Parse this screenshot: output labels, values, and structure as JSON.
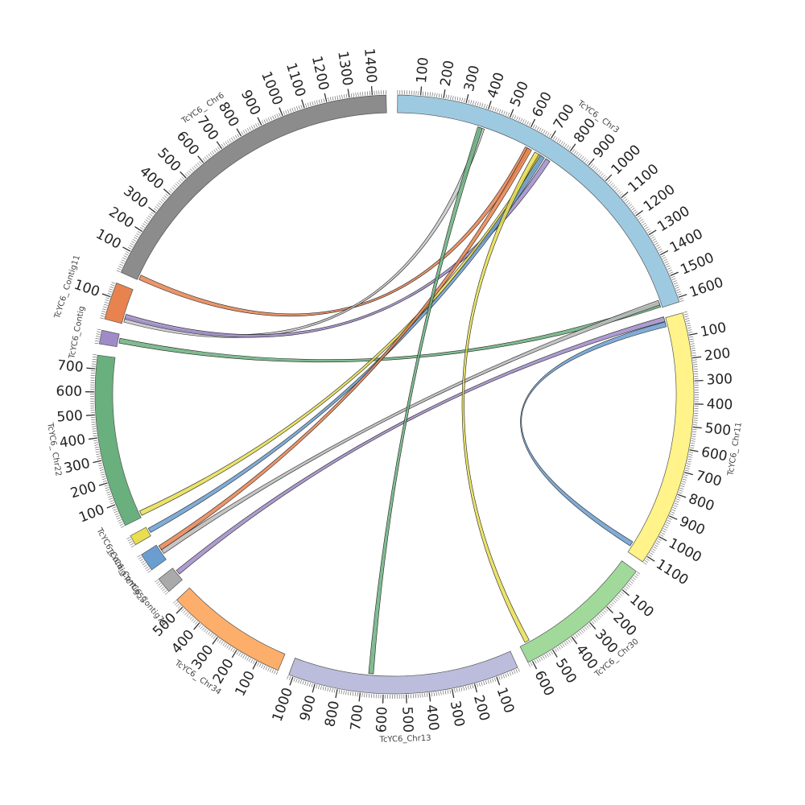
{
  "chart_data": {
    "type": "chord",
    "chromosomes": [
      {
        "name": "TcYC6_Chr3",
        "label": "TcYC6_ Chr3",
        "length": 1620,
        "color": "#9ecae1",
        "tick_labels": [
          "100",
          "200",
          "300",
          "400",
          "500",
          "600",
          "700",
          "800",
          "900",
          "1000",
          "1100",
          "1200",
          "1300",
          "1400",
          "1500",
          "1600"
        ]
      },
      {
        "name": "TcYC6_Chr11",
        "label": "TcYC6_ Chr11",
        "length": 1130,
        "color": "#fff38a",
        "tick_labels": [
          "100",
          "200",
          "300",
          "400",
          "500",
          "600",
          "700",
          "800",
          "900",
          "1000",
          "1100"
        ]
      },
      {
        "name": "TcYC6_Chr30",
        "label": "TcYC6_ Chr30",
        "length": 620,
        "color": "#a1d99b",
        "tick_labels": [
          "100",
          "200",
          "300",
          "400",
          "500",
          "600"
        ]
      },
      {
        "name": "TcYC6_Chr13",
        "label": "TcYC6_Chr13",
        "length": 1020,
        "color": "#bcbddc",
        "tick_labels": [
          "100",
          "200",
          "300",
          "400",
          "500",
          "600",
          "700",
          "800",
          "900",
          "1000"
        ]
      },
      {
        "name": "TcYC6_Chr34",
        "label": "TcYC6_ Chr34",
        "length": 540,
        "color": "#fdae6b",
        "tick_labels": [
          "100",
          "200",
          "300",
          "400",
          "500"
        ]
      },
      {
        "name": "TcYC6_Contig74",
        "label": "TcYC6_Contig74",
        "length": 70,
        "color": "#aaaaaa",
        "tick_labels": []
      },
      {
        "name": "TcYC6_Contig_b",
        "label": "TcYC6_Contig53",
        "length": 80,
        "color": "#6a9ed0",
        "tick_labels": []
      },
      {
        "name": "TcYC6_Contig_c",
        "label": "TcYC6_Contig",
        "length": 45,
        "color": "#e8de50",
        "tick_labels": []
      },
      {
        "name": "TcYC6_Chr22",
        "label": "TcYC6_ Chr22",
        "length": 760,
        "color": "#6aaf7e",
        "tick_labels": [
          "100",
          "200",
          "300",
          "400",
          "500",
          "600",
          "700"
        ]
      },
      {
        "name": "TcYC6_Contig_p",
        "label": "TcYC6_Contig",
        "length": 60,
        "color": "#9f8bc8",
        "tick_labels": []
      },
      {
        "name": "TcYC6_Contig11",
        "label": "TcYC6_ Contig11",
        "length": 165,
        "color": "#e8834f",
        "tick_labels": [
          "100"
        ]
      },
      {
        "name": "TcYC6_Chr6",
        "label": "TcYC6_ Chr6",
        "length": 1460,
        "color": "#8c8c8c",
        "tick_labels": [
          "100",
          "200",
          "300",
          "400",
          "500",
          "600",
          "700",
          "800",
          "900",
          "1000",
          "1100",
          "1200",
          "1300",
          "1400"
        ]
      }
    ],
    "links": [
      {
        "from": [
          "TcYC6_Chr6",
          15
        ],
        "to": [
          "TcYC6_Chr3",
          630
        ],
        "color": "#e8834f"
      },
      {
        "from": [
          "TcYC6_Contig11",
          20
        ],
        "to": [
          "TcYC6_Chr3",
          400
        ],
        "color": "#c8c8c8"
      },
      {
        "from": [
          "TcYC6_Contig11",
          35
        ],
        "to": [
          "TcYC6_Chr3",
          740
        ],
        "color": "#9f8bc8"
      },
      {
        "from": [
          "TcYC6_Contig_p",
          30
        ],
        "to": [
          "TcYC6_Chr3",
          1605
        ],
        "color": "#6aaf7e"
      },
      {
        "from": [
          "TcYC6_Chr22",
          20
        ],
        "to": [
          "TcYC6_Chr3",
          700
        ],
        "color": "#e8de50"
      },
      {
        "from": [
          "TcYC6_Contig_c",
          25
        ],
        "to": [
          "TcYC6_Chr3",
          710
        ],
        "color": "#6a9ed0"
      },
      {
        "from": [
          "TcYC6_Contig_b",
          40
        ],
        "to": [
          "TcYC6_Chr3",
          1595
        ],
        "color": "#bbbbbb"
      },
      {
        "from": [
          "TcYC6_Contig_b",
          60
        ],
        "to": [
          "TcYC6_Chr3",
          640
        ],
        "color": "#e8834f"
      },
      {
        "from": [
          "TcYC6_Contig74",
          40
        ],
        "to": [
          "TcYC6_Chr11",
          5
        ],
        "color": "#9f8bc8"
      },
      {
        "from": [
          "TcYC6_Chr13",
          660
        ],
        "to": [
          "TcYC6_Chr3",
          390
        ],
        "color": "#6aaf7e"
      },
      {
        "from": [
          "TcYC6_Chr30",
          580
        ],
        "to": [
          "TcYC6_Chr3",
          680
        ],
        "color": "#e8de50"
      },
      {
        "from": [
          "TcYC6_Chr11",
          30
        ],
        "to": [
          "TcYC6_Chr11",
          1090
        ],
        "color": "#6a9ed0"
      }
    ]
  }
}
